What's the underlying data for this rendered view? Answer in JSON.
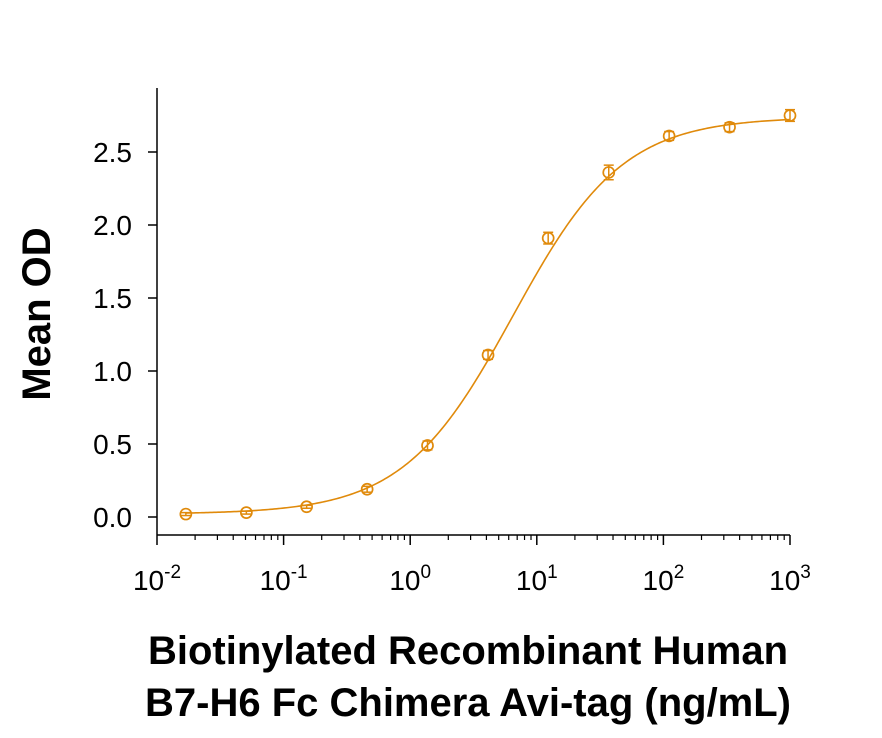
{
  "chart_data": {
    "type": "scatter",
    "title": "",
    "xlabel_lines": [
      "Biotinylated Recombinant Human",
      "B7-H6 Fc Chimera Avi-tag (ng/mL)"
    ],
    "ylabel": "Mean OD",
    "x_scale": "log",
    "xlim": [
      0.01,
      1000
    ],
    "ylim": [
      0,
      2.75
    ],
    "x_ticks": [
      {
        "base": "10",
        "exp": "-2"
      },
      {
        "base": "10",
        "exp": "-1"
      },
      {
        "base": "10",
        "exp": "0"
      },
      {
        "base": "10",
        "exp": "1"
      },
      {
        "base": "10",
        "exp": "2"
      },
      {
        "base": "10",
        "exp": "3"
      }
    ],
    "y_ticks": [
      "0.0",
      "0.5",
      "1.0",
      "1.5",
      "2.0",
      "2.5"
    ],
    "grid": false,
    "legend": "none",
    "color": "#E08A0B",
    "series": [
      {
        "x": [
          0.0169,
          0.0508,
          0.152,
          0.457,
          1.37,
          4.12,
          12.3,
          37.0,
          111,
          333,
          1000
        ],
        "y": [
          0.02,
          0.03,
          0.07,
          0.19,
          0.49,
          1.11,
          1.91,
          2.36,
          2.61,
          2.67,
          2.75
        ],
        "err": [
          0.01,
          0.01,
          0.01,
          0.02,
          0.03,
          0.03,
          0.04,
          0.05,
          0.03,
          0.03,
          0.04
        ]
      }
    ],
    "fit": {
      "bottom": 0.02,
      "top": 2.74,
      "ec50": 6.5,
      "hill": 1.0
    }
  }
}
